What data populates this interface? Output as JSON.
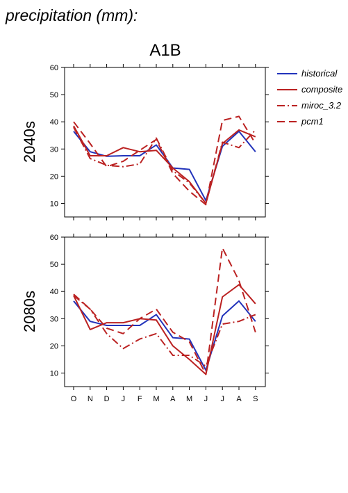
{
  "title": "precipitation (mm):",
  "scenario": "A1B",
  "legend": [
    {
      "name": "historical",
      "color": "#2233bb",
      "dash": "solid"
    },
    {
      "name": "composite",
      "color": "#bb2222",
      "dash": "solid"
    },
    {
      "name": "miroc_3.2",
      "color": "#bb2222",
      "dash": "dashdot"
    },
    {
      "name": "pcm1",
      "color": "#bb2222",
      "dash": "dashed"
    }
  ],
  "chart_data": [
    {
      "type": "line",
      "panel_label": "2040s",
      "categories": [
        "O",
        "N",
        "D",
        "J",
        "F",
        "M",
        "A",
        "M",
        "J",
        "J",
        "A",
        "S"
      ],
      "yticks": [
        10,
        20,
        30,
        40,
        50,
        60
      ],
      "ylim": [
        5,
        60
      ],
      "series": [
        {
          "name": "historical",
          "values": [
            36.5,
            29.0,
            27.3,
            27.5,
            27.5,
            31.5,
            23.0,
            22.5,
            11.0,
            31.0,
            36.5,
            29.0
          ]
        },
        {
          "name": "composite",
          "values": [
            38.5,
            27.5,
            27.5,
            30.5,
            29.0,
            29.5,
            23.0,
            18.0,
            10.0,
            32.0,
            37.0,
            34.5
          ]
        },
        {
          "name": "miroc_3.2",
          "values": [
            38.0,
            26.5,
            24.0,
            23.5,
            24.5,
            34.0,
            22.0,
            17.5,
            10.0,
            32.5,
            30.5,
            37.0
          ]
        },
        {
          "name": "pcm1",
          "values": [
            40.0,
            32.0,
            23.5,
            25.5,
            29.5,
            33.5,
            21.0,
            14.5,
            9.5,
            40.5,
            42.0,
            32.0
          ]
        }
      ]
    },
    {
      "type": "line",
      "panel_label": "2080s",
      "categories": [
        "O",
        "N",
        "D",
        "J",
        "F",
        "M",
        "A",
        "M",
        "J",
        "J",
        "A",
        "S"
      ],
      "yticks": [
        10,
        20,
        30,
        40,
        50,
        60
      ],
      "ylim": [
        5,
        60
      ],
      "series": [
        {
          "name": "historical",
          "values": [
            36.5,
            29.0,
            27.5,
            27.5,
            27.5,
            31.5,
            23.0,
            22.5,
            11.0,
            31.0,
            36.5,
            29.0
          ]
        },
        {
          "name": "composite",
          "values": [
            38.5,
            26.0,
            28.5,
            28.5,
            30.0,
            29.5,
            20.0,
            15.0,
            9.5,
            38.0,
            42.5,
            35.5
          ]
        },
        {
          "name": "miroc_3.2",
          "values": [
            38.5,
            33.5,
            24.5,
            19.0,
            22.5,
            24.5,
            16.5,
            16.5,
            12.5,
            28.0,
            29.0,
            31.5
          ]
        },
        {
          "name": "pcm1",
          "values": [
            39.0,
            33.5,
            26.5,
            24.5,
            30.0,
            33.5,
            25.0,
            21.5,
            9.5,
            56.0,
            44.0,
            25.0
          ]
        }
      ]
    }
  ]
}
